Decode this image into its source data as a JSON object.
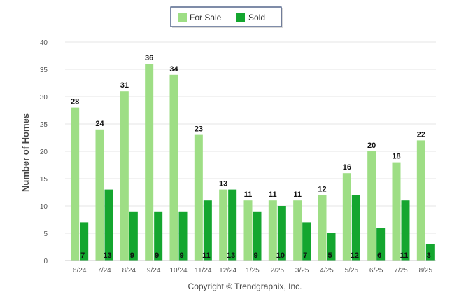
{
  "chart_data": {
    "type": "bar",
    "categories": [
      "6/24",
      "7/24",
      "8/24",
      "9/24",
      "10/24",
      "11/24",
      "12/24",
      "1/25",
      "2/25",
      "3/25",
      "4/25",
      "5/25",
      "6/25",
      "7/25",
      "8/25"
    ],
    "series": [
      {
        "name": "For Sale",
        "color": "#9ede85",
        "values": [
          28,
          24,
          31,
          36,
          34,
          23,
          13,
          11,
          11,
          11,
          12,
          16,
          20,
          18,
          22
        ]
      },
      {
        "name": "Sold",
        "color": "#14a62f",
        "values": [
          7,
          13,
          9,
          9,
          9,
          11,
          13,
          9,
          10,
          7,
          5,
          12,
          6,
          11,
          3
        ]
      }
    ],
    "ylabel": "Number of Homes",
    "xlabel": "",
    "ylim": [
      0,
      40
    ],
    "yticks": [
      0,
      5,
      10,
      15,
      20,
      25,
      30,
      35,
      40
    ],
    "grid": true,
    "legend_position": "top-center"
  },
  "footer": {
    "copyright": "Copyright © Trendgraphix, Inc."
  }
}
